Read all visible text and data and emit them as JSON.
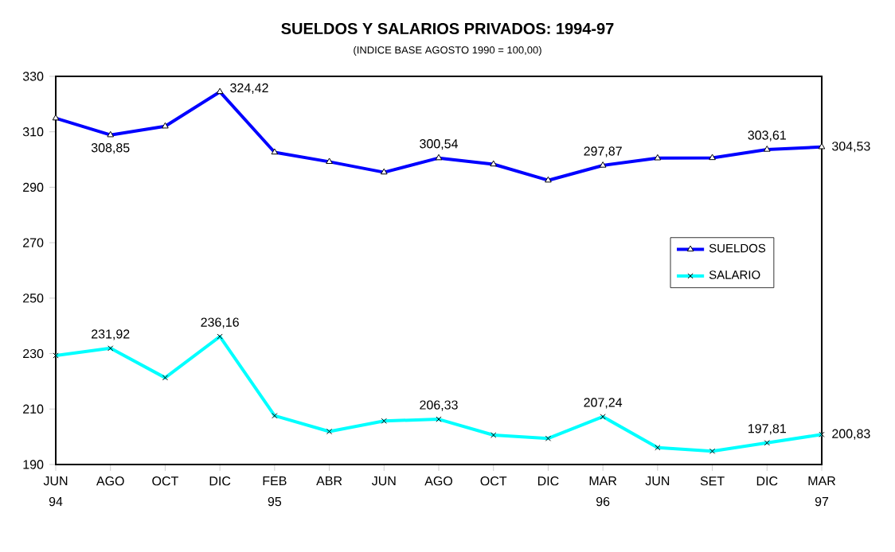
{
  "chart_data": {
    "type": "line",
    "title": "SUELDOS Y SALARIOS PRIVADOS: 1994-97",
    "subtitle": "(INDICE BASE AGOSTO 1990 = 100,00)",
    "categories": [
      "JUN 94",
      "AGO",
      "OCT",
      "DIC",
      "FEB 95",
      "ABR",
      "JUN",
      "AGO",
      "OCT",
      "DIC",
      "MAR 96",
      "JUN",
      "SET",
      "DIC",
      "MAR 97"
    ],
    "series": [
      {
        "name": "SUELDOS",
        "color": "#0000ff",
        "marker": "triangle",
        "values": [
          314.9,
          308.85,
          312.0,
          324.42,
          302.6,
          299.2,
          295.4,
          300.54,
          298.3,
          292.5,
          297.87,
          300.5,
          300.6,
          303.61,
          304.53
        ],
        "value_labels": [
          null,
          "308,85",
          null,
          "324,42",
          null,
          null,
          null,
          "300,54",
          null,
          null,
          "297,87",
          null,
          null,
          "303,61",
          "304,53"
        ]
      },
      {
        "name": "SALARIO",
        "color": "#00ffff",
        "marker": "cross",
        "values": [
          229.3,
          231.92,
          221.3,
          236.16,
          207.6,
          201.9,
          205.7,
          206.33,
          200.6,
          199.4,
          207.24,
          196.1,
          194.8,
          197.81,
          200.83
        ],
        "value_labels": [
          null,
          "231,92",
          null,
          "236,16",
          null,
          null,
          null,
          "206,33",
          null,
          null,
          "207,24",
          null,
          null,
          "197,81",
          "200,83"
        ]
      }
    ],
    "ylim": [
      190,
      330
    ],
    "yticks": [
      190,
      210,
      230,
      250,
      270,
      290,
      310,
      330
    ],
    "grid": false,
    "legend": "right",
    "line_style": "solid"
  }
}
